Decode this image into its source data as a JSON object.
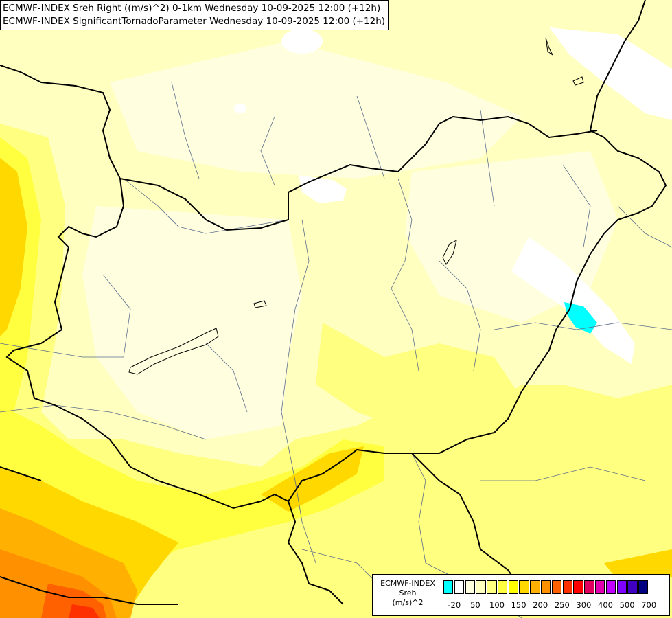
{
  "titles": [
    "ECMWF-INDEX Sreh Right ((m/s)^2) 0-1km Wednesday 10-09-2025 12:00 (+12h)",
    "ECMWF-INDEX SignificantTornadoParameter Wednesday 10-09-2025 12:00 (+12h)"
  ],
  "legend": {
    "source": "ECMWF-INDEX",
    "name": "Sreh",
    "unit": "(m/s)^2",
    "colors": [
      "#00ffff",
      "#ffffff",
      "#ffffe0",
      "#ffffc0",
      "#ffff80",
      "#ffff40",
      "#ffff00",
      "#ffd800",
      "#ffb000",
      "#ff9000",
      "#ff6000",
      "#ff3000",
      "#ff0000",
      "#e00060",
      "#e000b0",
      "#c000ff",
      "#8000ff",
      "#4000c0",
      "#000080"
    ],
    "ticks": [
      "-20",
      "50",
      "100",
      "150",
      "200",
      "250",
      "300",
      "400",
      "500",
      "700"
    ]
  },
  "field_colors": {
    "background": "#ffffc0",
    "low": "#ffffe0",
    "neg": "#ffffff",
    "cyan": "#00ffff",
    "mid": "#ffff80",
    "high": "#ffff40",
    "strong": "#ffd800",
    "very_strong": "#ffb000",
    "extreme": "#ff9000",
    "peak": "#ff6000",
    "max": "#ff3000"
  }
}
